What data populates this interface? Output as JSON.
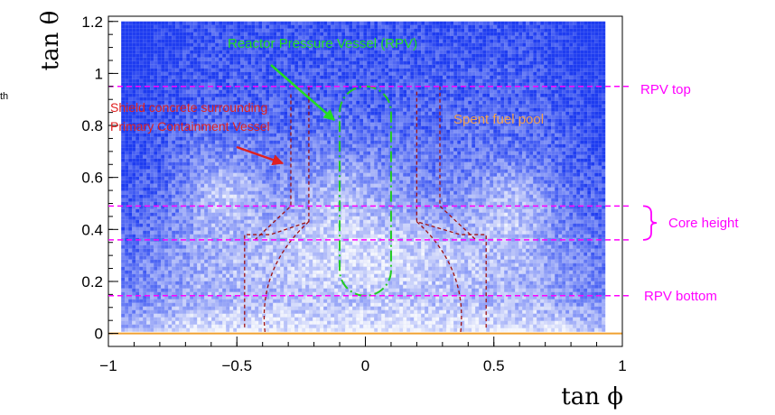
{
  "chart_data": {
    "type": "heatmap",
    "title": "",
    "xlabel": "tan ϕ",
    "ylabel": "tan θ",
    "xlim": [
      -1.0,
      1.0
    ],
    "ylim": [
      -0.05,
      1.22
    ],
    "x_ticks": [
      -1,
      -0.5,
      0,
      0.5,
      1
    ],
    "x_tick_labels": [
      "−1",
      "−0.5",
      "0",
      "0.5",
      "1"
    ],
    "y_ticks": [
      0,
      0.2,
      0.4,
      0.6,
      0.8,
      1.0,
      1.2
    ],
    "y_tick_labels": [
      "0",
      "0.2",
      "0.4",
      "0.6",
      "0.8",
      "1",
      "1.2"
    ],
    "colors": {
      "density_high": "#1e3cf0",
      "density_low": "#f4f6fd",
      "magenta_lines": "#ff00ff",
      "rpv_outline": "#22cc22",
      "structure_outline": "#a01010",
      "baseline": "#f0a030"
    },
    "horizontal_lines": [
      {
        "y": 0.95,
        "label": "RPV top"
      },
      {
        "y": 0.49
      },
      {
        "y": 0.36
      },
      {
        "y": 0.145,
        "label": "RPV bottom"
      }
    ],
    "core_height_label": "Core height",
    "annotations": {
      "rpv": "Reactor Pressure Vessel (RPV)",
      "shield_line1": "Shield concrete surrounding",
      "shield_line2": "Primary Containment Vessel",
      "pool": "Spent fuel pool"
    },
    "stray_text": "th",
    "rpv_shape": {
      "x_min": -0.1,
      "x_max": 0.1,
      "y_min": 0.145,
      "y_max": 0.95
    },
    "baseline_y": 0.0
  }
}
